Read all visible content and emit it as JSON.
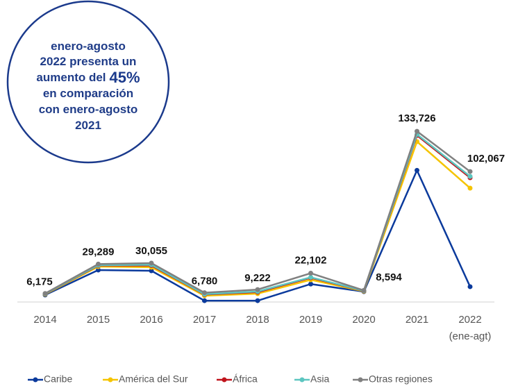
{
  "chart_data": {
    "type": "stacked_line",
    "categories": [
      "2014",
      "2015",
      "2016",
      "2017",
      "2018",
      "2019",
      "2020",
      "2021",
      "2022"
    ],
    "period_note": "(ene-agt)",
    "series": [
      {
        "name": "Caribe",
        "color": "#0b3a9c",
        "values": [
          5000,
          24600,
          24000,
          500,
          500,
          13600,
          7600,
          103000,
          11500
        ]
      },
      {
        "name": "América del Sur",
        "color": "#f5c400",
        "values": [
          500,
          2700,
          2800,
          3900,
          5500,
          3300,
          300,
          22600,
          77500
        ]
      },
      {
        "name": "África",
        "color": "#c0141c",
        "values": [
          300,
          800,
          1400,
          900,
          1200,
          1600,
          300,
          4900,
          8200
        ]
      },
      {
        "name": "Asia",
        "color": "#5cc6c0",
        "values": [
          100,
          300,
          500,
          300,
          500,
          400,
          100,
          800,
          1000
        ]
      },
      {
        "name": "Otras regiones",
        "color": "#808080",
        "values": [
          275,
          889,
          1355,
          1180,
          1522,
          3202,
          294,
          2426,
          3867
        ]
      }
    ],
    "totals": {
      "values": [
        6175,
        29289,
        30055,
        6780,
        9222,
        22102,
        8594,
        133726,
        102067
      ],
      "value_labels": [
        "6,175",
        "29,289",
        "30,055",
        "6,780",
        "9,222",
        "22,102",
        "8,594",
        "133,726",
        "102,067"
      ]
    },
    "annotation": {
      "lines": [
        "enero-agosto",
        "2022 presenta un",
        "aumento del",
        "en comparación",
        "con enero-agosto",
        "2021"
      ],
      "highlight": "45%"
    }
  }
}
